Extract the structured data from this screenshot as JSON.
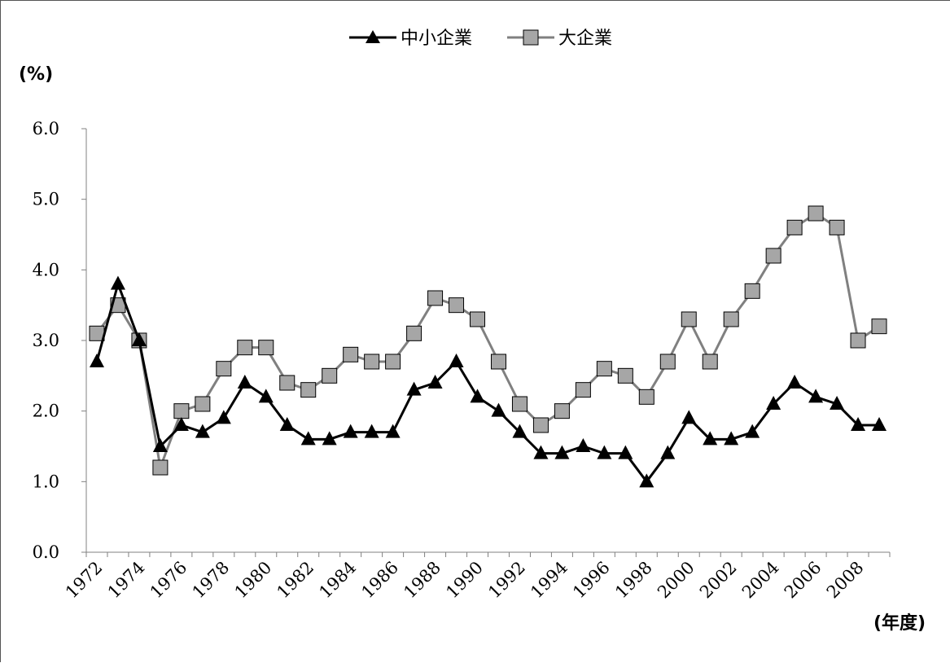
{
  "chart_data": {
    "type": "line",
    "title": "",
    "ylabel": "(%)",
    "xlabel": "(年度)",
    "ylim": [
      0,
      6
    ],
    "yticks": [
      "0.0",
      "1.0",
      "2.0",
      "3.0",
      "4.0",
      "5.0",
      "6.0"
    ],
    "x": [
      1972,
      1973,
      1974,
      1975,
      1976,
      1977,
      1978,
      1979,
      1980,
      1981,
      1982,
      1983,
      1984,
      1985,
      1986,
      1987,
      1988,
      1989,
      1990,
      1991,
      1992,
      1993,
      1994,
      1995,
      1996,
      1997,
      1998,
      1999,
      2000,
      2001,
      2002,
      2003,
      2004,
      2005,
      2006,
      2007,
      2008,
      2009
    ],
    "xtick_labels": [
      "1972",
      "1974",
      "1976",
      "1978",
      "1980",
      "1982",
      "1984",
      "1986",
      "1988",
      "1990",
      "1992",
      "1994",
      "1996",
      "1998",
      "2000",
      "2002",
      "2004",
      "2006",
      "2008"
    ],
    "legend_position": "top-center",
    "grid": false,
    "series": [
      {
        "name": "中小企業",
        "color": "#000000",
        "marker": "triangle",
        "values": [
          2.7,
          3.8,
          3.0,
          1.5,
          1.8,
          1.7,
          1.9,
          2.4,
          2.2,
          1.8,
          1.6,
          1.6,
          1.7,
          1.7,
          1.7,
          2.3,
          2.4,
          2.7,
          2.2,
          2.0,
          1.7,
          1.4,
          1.4,
          1.5,
          1.4,
          1.4,
          1.0,
          1.4,
          1.9,
          1.6,
          1.6,
          1.7,
          2.1,
          2.4,
          2.2,
          2.1,
          1.8,
          1.8
        ]
      },
      {
        "name": "大企業",
        "color": "#808080",
        "marker": "square",
        "values": [
          3.1,
          3.5,
          3.0,
          1.2,
          2.0,
          2.1,
          2.6,
          2.9,
          2.9,
          2.4,
          2.3,
          2.5,
          2.8,
          2.7,
          2.7,
          3.1,
          3.6,
          3.5,
          3.3,
          2.7,
          2.1,
          1.8,
          2.0,
          2.3,
          2.6,
          2.5,
          2.2,
          2.7,
          3.3,
          2.7,
          3.3,
          3.7,
          4.2,
          4.6,
          4.8,
          4.6,
          3.0,
          3.2
        ]
      }
    ]
  }
}
